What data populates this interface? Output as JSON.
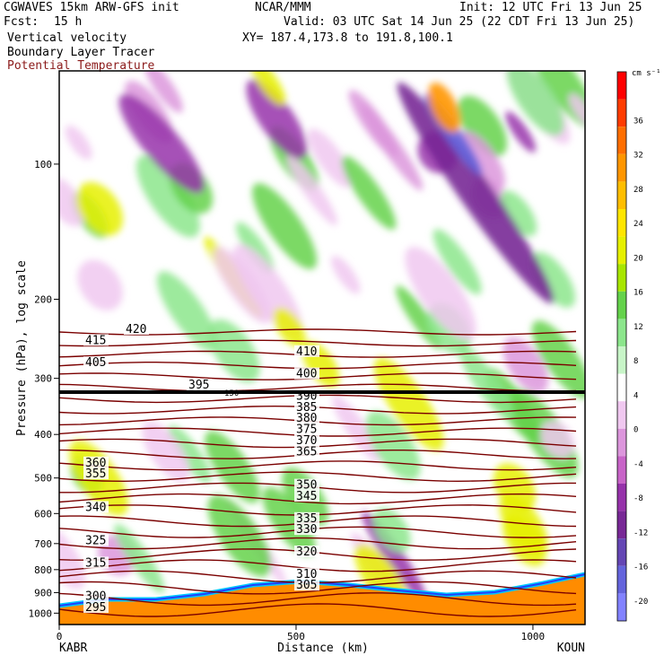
{
  "header": {
    "model": "CGWAVES 15km ARW-GFS init",
    "org": "NCAR/MMM",
    "init": "Init: 12 UTC Fri 13 Jun 25",
    "fcst_label": "Fcst:",
    "fcst_value": "15 h",
    "valid": "Valid: 03 UTC Sat 14 Jun 25 (22 CDT Fri 13 Jun 25)",
    "fields": [
      "Vertical velocity",
      "Boundary Layer Tracer",
      "Potential Temperature"
    ],
    "xy": "XY= 187.4,173.8 to 191.8,100.1"
  },
  "colors": {
    "theta_contour": "#7a0000",
    "terrain": "#ff8c00",
    "tracer_cyan": "#00c8ff",
    "tracer_blue": "#2040ff"
  },
  "chart_data": {
    "type": "cross-section",
    "xlabel": "Distance (km)",
    "ylabel": "Pressure (hPa), log scale",
    "x_ticks": [
      "0",
      "500",
      "1000"
    ],
    "xlim": [
      0,
      1110
    ],
    "y_ticks": [
      "100",
      "200",
      "300",
      "400",
      "500",
      "600",
      "700",
      "800",
      "900",
      "1000"
    ],
    "y_scale": "log",
    "endpoints": {
      "left": "KABR",
      "right": "KOUN"
    },
    "colorbar": {
      "unit": "cm s⁻¹",
      "levels": [
        36,
        32,
        28,
        24,
        20,
        16,
        12,
        8,
        4,
        0,
        -4,
        -8,
        -12,
        -16,
        -20
      ],
      "colors": [
        "#ff0000",
        "#ff3c00",
        "#ff6e00",
        "#ff9600",
        "#ffbe00",
        "#ffe600",
        "#e6f000",
        "#a8e600",
        "#64d24b",
        "#8ce68c",
        "#c8f5c8",
        "#ffffff",
        "#f0c8f0",
        "#dc96dc",
        "#c864c8",
        "#9632aa",
        "#782896",
        "#6446b4",
        "#6464dc",
        "#8282ff"
      ]
    },
    "theta_labels": [
      {
        "text": "420",
        "pos": "top-left"
      },
      {
        "text": "415",
        "pos": "left"
      },
      {
        "text": "410",
        "pos": "center"
      },
      {
        "text": "405",
        "pos": "left"
      },
      {
        "text": "400",
        "pos": "center"
      },
      {
        "text": "395",
        "pos": "left-center"
      },
      {
        "text": "390",
        "pos": "center"
      },
      {
        "text": "385",
        "pos": "center"
      },
      {
        "text": "380",
        "pos": "center"
      },
      {
        "text": "375",
        "pos": "center"
      },
      {
        "text": "370",
        "pos": "center"
      },
      {
        "text": "365",
        "pos": "center"
      },
      {
        "text": "360",
        "pos": "left"
      },
      {
        "text": "355",
        "pos": "left"
      },
      {
        "text": "350",
        "pos": "center"
      },
      {
        "text": "345",
        "pos": "center"
      },
      {
        "text": "340",
        "pos": "left"
      },
      {
        "text": "335",
        "pos": "center"
      },
      {
        "text": "330",
        "pos": "center"
      },
      {
        "text": "325",
        "pos": "left"
      },
      {
        "text": "320",
        "pos": "center"
      },
      {
        "text": "315",
        "pos": "left"
      },
      {
        "text": "310",
        "pos": "center"
      },
      {
        "text": "305",
        "pos": "center"
      },
      {
        "text": "300",
        "pos": "left"
      },
      {
        "text": "295",
        "pos": "left"
      }
    ],
    "tropopause_label": "150"
  }
}
